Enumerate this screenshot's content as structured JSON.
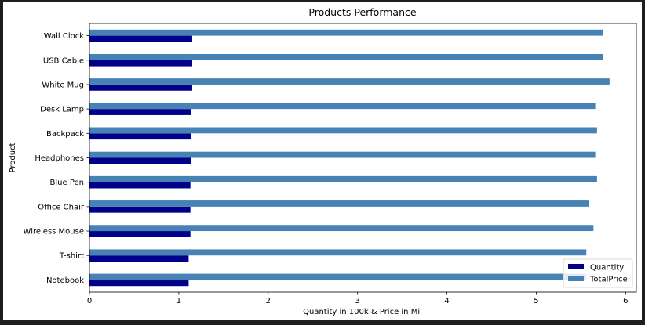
{
  "chart_data": {
    "type": "bar",
    "orientation": "horizontal",
    "title": "Products Performance",
    "xlabel": "Quantity in 100k & Price in Mil",
    "ylabel": "Product",
    "categories": [
      "Notebook",
      "T-shirt",
      "Wireless Mouse",
      "Office Chair",
      "Blue Pen",
      "Headphones",
      "Backpack",
      "Desk Lamp",
      "White Mug",
      "USB Cable",
      "Wall Clock"
    ],
    "series": [
      {
        "name": "Quantity",
        "color": "#00008b",
        "values": [
          1.11,
          1.11,
          1.13,
          1.13,
          1.13,
          1.14,
          1.14,
          1.14,
          1.15,
          1.15,
          1.15
        ]
      },
      {
        "name": "TotalPrice",
        "color": "#4682b4",
        "values": [
          5.56,
          5.56,
          5.64,
          5.59,
          5.68,
          5.66,
          5.68,
          5.66,
          5.82,
          5.75,
          5.75
        ]
      }
    ],
    "xlim": [
      0,
      6.12
    ],
    "xticks": [
      0,
      1,
      2,
      3,
      4,
      5,
      6
    ],
    "grid": false,
    "legend_position": "lower-right"
  }
}
